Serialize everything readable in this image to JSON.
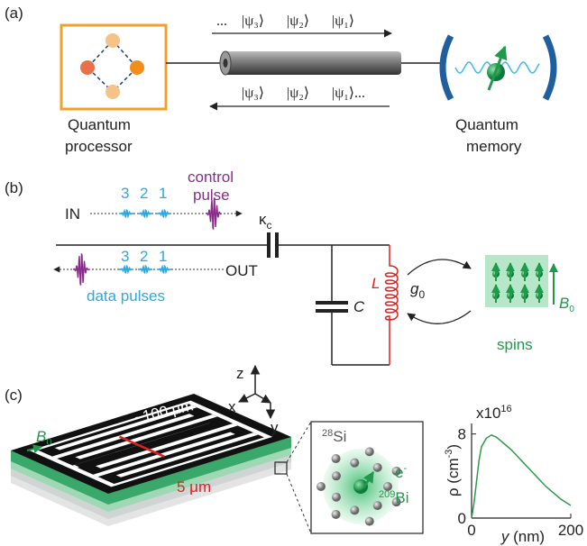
{
  "panels": {
    "a": {
      "label": "(a)",
      "top_sequence": [
        "...",
        "|ψ₃⟩",
        "|ψ₂⟩",
        "|ψ₁⟩"
      ],
      "bottom_sequence": [
        "|ψ₃⟩",
        "|ψ₂⟩",
        "|ψ₁⟩..."
      ],
      "processor": [
        "Quantum",
        "processor"
      ],
      "memory": [
        "Quantum",
        "memory"
      ]
    },
    "b": {
      "label": "(b)",
      "control_pulse": [
        "control",
        "pulse"
      ],
      "in": "IN",
      "out": "OUT",
      "in_numbers": [
        "3",
        "2",
        "1"
      ],
      "out_numbers": [
        "3",
        "2",
        "1"
      ],
      "kappa": [
        "κ",
        "c"
      ],
      "data_pulses": "data pulses",
      "capacitor": "C",
      "inductor": "L",
      "coupling": [
        "g",
        "0"
      ],
      "field": [
        "B",
        "0"
      ],
      "spins": "spins"
    },
    "c": {
      "label": "(c)",
      "axes": [
        "z",
        "x",
        "y"
      ],
      "field": [
        "B",
        "0"
      ],
      "length": "~100 μm",
      "width": "5 μm",
      "si": [
        "28",
        "Si"
      ],
      "electron": [
        "e",
        "-"
      ],
      "bi": [
        "209",
        "Bi"
      ]
    }
  },
  "chart_data": {
    "type": "line",
    "color": "#2e9a48",
    "x": [
      0,
      5,
      10,
      15,
      20,
      30,
      40,
      50,
      60,
      70,
      80,
      90,
      100,
      110,
      120,
      130,
      140,
      150,
      160,
      170,
      180,
      190,
      200
    ],
    "y": [
      0,
      1.5,
      3.5,
      5.5,
      6.8,
      7.6,
      7.9,
      7.7,
      7.3,
      6.9,
      6.5,
      6.0,
      5.5,
      5.0,
      4.5,
      4.0,
      3.5,
      3.0,
      2.6,
      2.2,
      1.8,
      1.5,
      1.2
    ],
    "xlim": [
      0,
      200
    ],
    "ylim": [
      0,
      9
    ],
    "xticks": [
      0,
      200
    ],
    "yticks": [
      0,
      8
    ],
    "multiplier": [
      "x10",
      "16"
    ],
    "ylabel": [
      "ρ (cm",
      "-3",
      ")"
    ],
    "xlabel": [
      "y",
      " (nm)"
    ]
  }
}
